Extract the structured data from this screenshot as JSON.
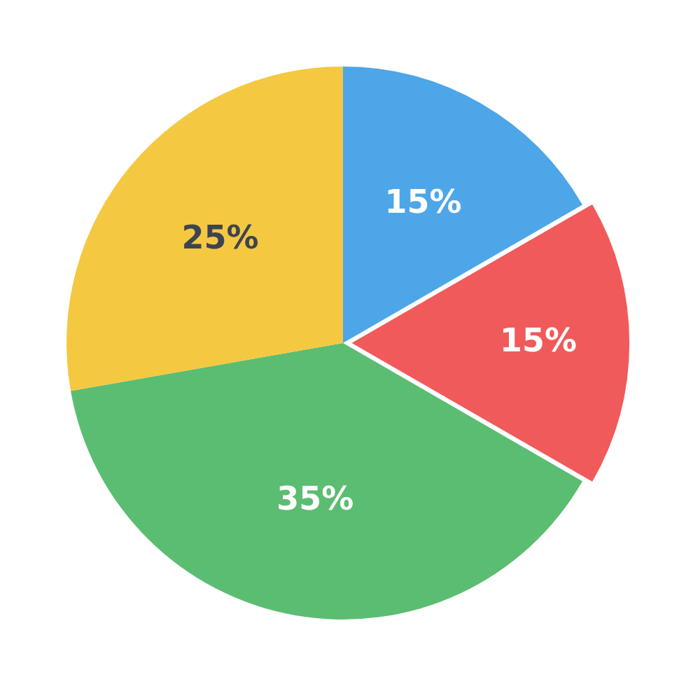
{
  "chart_data": {
    "type": "pie",
    "values": [
      15,
      15,
      35,
      25
    ],
    "value_labels": [
      "15%",
      "15%",
      "35%",
      "25%"
    ],
    "colors": [
      "#4DA6E8",
      "#F05A5A",
      "#5BBD72",
      "#F5C842"
    ],
    "data_labels": true
  }
}
